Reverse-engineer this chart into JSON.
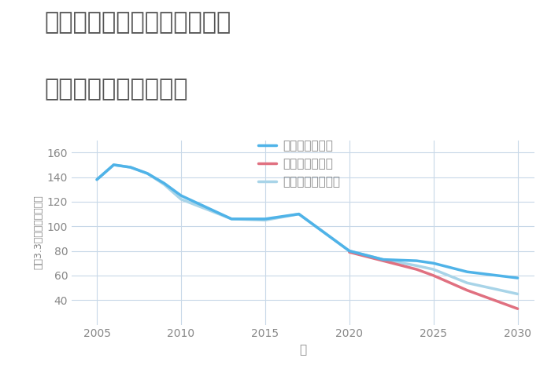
{
  "title_line1": "奈良県吉野郡吉野町吉野山の",
  "title_line2": "中古戸建ての価格推移",
  "xlabel": "年",
  "ylabel": "坪（3.3㎡）単価（万円）",
  "background_color": "#ffffff",
  "plot_bg_color": "#ffffff",
  "grid_color": "#c8d8e8",
  "xlim": [
    2003.5,
    2031
  ],
  "ylim": [
    20,
    170
  ],
  "yticks": [
    40,
    60,
    80,
    100,
    120,
    140,
    160
  ],
  "xticks": [
    2005,
    2010,
    2015,
    2020,
    2025,
    2030
  ],
  "good_scenario": {
    "label": "グッドシナリオ",
    "color": "#4fb3e8",
    "linewidth": 2.5,
    "x": [
      2005,
      2006,
      2007,
      2008,
      2009,
      2010,
      2013,
      2015,
      2017,
      2020,
      2022,
      2024,
      2025,
      2027,
      2030
    ],
    "y": [
      138,
      150,
      148,
      143,
      135,
      125,
      106,
      106,
      110,
      80,
      73,
      72,
      70,
      63,
      58
    ]
  },
  "bad_scenario": {
    "label": "バッドシナリオ",
    "color": "#e07080",
    "linewidth": 2.5,
    "x": [
      2020,
      2022,
      2024,
      2025,
      2027,
      2030
    ],
    "y": [
      79,
      72,
      65,
      60,
      48,
      33
    ]
  },
  "normal_scenario": {
    "label": "ノーマルシナリオ",
    "color": "#a8d4e8",
    "linewidth": 2.5,
    "x": [
      2005,
      2006,
      2007,
      2008,
      2009,
      2010,
      2013,
      2015,
      2017,
      2020,
      2022,
      2024,
      2025,
      2027,
      2030
    ],
    "y": [
      138,
      150,
      148,
      143,
      134,
      122,
      106,
      105,
      110,
      80,
      73,
      68,
      65,
      54,
      45
    ]
  },
  "title_color": "#555555",
  "title_fontsize": 22,
  "axis_label_color": "#888888",
  "tick_color": "#888888",
  "tick_fontsize": 10,
  "legend_fontsize": 11,
  "legend_text_color": "#888888"
}
